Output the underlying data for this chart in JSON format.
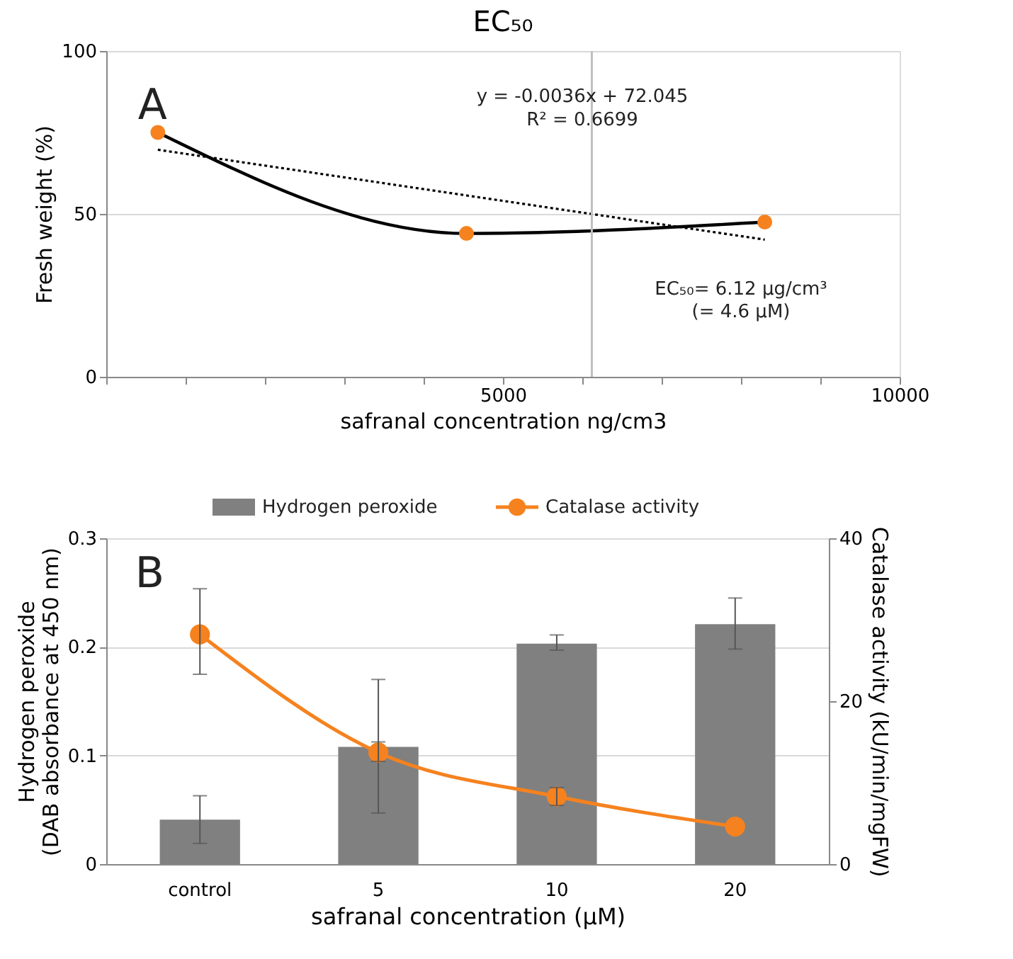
{
  "chart_data": [
    {
      "type": "line",
      "title": "EC₅₀",
      "xlabel": "safranal concentration ng/cm3",
      "ylabel": "Fresh weight (%)",
      "xlim": [
        0,
        10000
      ],
      "xticks": [
        {
          "value": 0,
          "label": null
        },
        {
          "value": 1000,
          "label": null
        },
        {
          "value": 2000,
          "label": null
        },
        {
          "value": 3000,
          "label": null
        },
        {
          "value": 4000,
          "label": null
        },
        5000,
        {
          "value": 6000,
          "label": null
        },
        {
          "value": 7000,
          "label": null
        },
        {
          "value": 8000,
          "label": null
        },
        {
          "value": 9000,
          "label": null
        },
        10000
      ],
      "ylim": [
        0,
        100
      ],
      "yticks": [
        0,
        50,
        100
      ],
      "grid": "y",
      "legend": false,
      "series": [
        {
          "type": "line",
          "color": "#000000",
          "x": [
            650,
            4540,
            8300
          ],
          "values": [
            75,
            44,
            47.5
          ],
          "marker": "none",
          "line_style": "solid"
        },
        {
          "type": "scatter",
          "color": "#f5821f",
          "x": [
            650,
            4540,
            8300
          ],
          "values": [
            75,
            44,
            47.5
          ],
          "marker": "circle"
        },
        {
          "type": "line",
          "color": "#000000",
          "x": [
            650,
            8300
          ],
          "values": [
            69.7,
            42.1
          ],
          "marker": "none",
          "line_style": "dotted"
        }
      ],
      "ref_lines": [
        {
          "axis": "x",
          "value": 6120,
          "color": "#bfbfbf"
        }
      ],
      "annotations": [
        "A",
        "y = -0.0036x + 72.045",
        "R² = 0.6699",
        "EC₅₀= 6.12 µg/cm³",
        "(= 4.6 µM)"
      ]
    },
    {
      "type": "bar",
      "xlabel": "safranal concentration (µM)",
      "ylabel": "Hydrogen peroxide\n(DAB absorbance at 450 nm)",
      "y2label": "Catalase activity (kU/min/mgFW)",
      "categories": [
        "control",
        "5",
        "10",
        "20"
      ],
      "ylim": [
        0,
        0.3
      ],
      "yticks": [
        0,
        0.1,
        0.2,
        0.3
      ],
      "y2lim": [
        0,
        40
      ],
      "y2ticks": [
        0,
        20,
        40
      ],
      "grid": "y",
      "legend": "top",
      "series": [
        {
          "name": "Hydrogen peroxide",
          "type": "bar",
          "color": "#808080",
          "values": [
            0.041,
            0.108,
            0.203,
            0.221
          ],
          "errors": [
            [
              0.019,
              0.063
            ],
            [
              0.047,
              0.17
            ],
            [
              0.197,
              0.211
            ],
            [
              0.198,
              0.245
            ]
          ]
        },
        {
          "name": "Catalase activity",
          "type": "line",
          "axis": "y2",
          "color": "#f5821f",
          "values": [
            28.2,
            13.7,
            8.3,
            4.6
          ],
          "errors": [
            [
              23.3,
              33.8
            ],
            [
              12.6,
              15.0
            ],
            [
              7.2,
              9.4
            ],
            null
          ],
          "marker": "circle"
        }
      ],
      "annotations": [
        "B"
      ]
    }
  ]
}
